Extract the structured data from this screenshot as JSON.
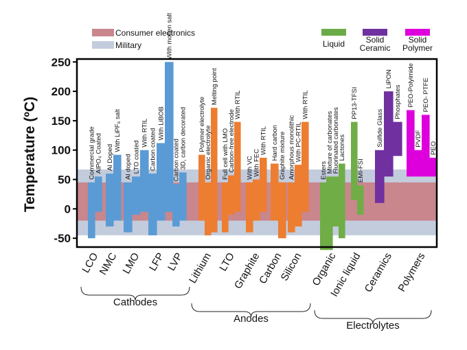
{
  "chart_data": {
    "type": "bar",
    "subtype": "floating-range",
    "ylabel": "Temperature (ºC)",
    "ylim": [
      -65,
      255
    ],
    "yticks": [
      -50,
      0,
      50,
      100,
      150,
      200,
      250
    ],
    "bands": [
      {
        "name": "Consumer electronics",
        "range": [
          -20,
          45
        ],
        "color": "#c9868d"
      },
      {
        "name": "Military",
        "range": [
          -45,
          67
        ],
        "color": "#c3ccdc"
      }
    ],
    "legend": {
      "band_entries": [
        "Consumer electronics",
        "Military"
      ],
      "color_entries": [
        {
          "label": "Liquid",
          "color": "#6bab47"
        },
        {
          "label": "Solid Ceramic",
          "color": "#7030a0"
        },
        {
          "label": "Solid Polymer",
          "color": "#dd00dd"
        }
      ]
    },
    "categories": [
      "LCO",
      "NMC",
      "LMO",
      "LFP",
      "LVP",
      "Lithium",
      "LTO",
      "Graphite",
      "Carbon",
      "Silicon",
      "Organic",
      "Ionic liquid",
      "Ceramics",
      "Polymers"
    ],
    "groups": [
      {
        "name": "Cathodes",
        "categories": [
          "LCO",
          "NMC",
          "LMO",
          "LFP",
          "LVP"
        ]
      },
      {
        "name": "Anodes",
        "categories": [
          "Lithium",
          "LTO",
          "Graphite",
          "Carbon",
          "Silicon"
        ]
      },
      {
        "name": "Electrolytes",
        "categories": [
          "Organic",
          "Ionic liquid",
          "Ceramics",
          "Polymers"
        ]
      }
    ],
    "series": [
      {
        "category": "LCO",
        "label": "Commercial grade",
        "low": -50,
        "high": 45,
        "color": "#5b9bd5"
      },
      {
        "category": "LCO",
        "label": "AlPO₄ Coated",
        "low": -5,
        "high": 55,
        "color": "#5b9bd5"
      },
      {
        "category": "NMC",
        "label": "Al Doped",
        "low": -30,
        "high": 60,
        "color": "#5b9bd5"
      },
      {
        "category": "NMC",
        "label": "With LiPF₆ salt",
        "low": -20,
        "high": 92,
        "color": "#5b9bd5"
      },
      {
        "category": "LMO",
        "label": "Al doped",
        "low": -40,
        "high": 45,
        "color": "#5b9bd5"
      },
      {
        "category": "LMO",
        "label": "LTO coated",
        "low": -10,
        "high": 55,
        "color": "#5b9bd5"
      },
      {
        "category": "LMO",
        "label": "With RTIL",
        "low": -5,
        "high": 100,
        "color": "#5b9bd5"
      },
      {
        "category": "LFP",
        "label": "Carbon coated",
        "low": -45,
        "high": 60,
        "color": "#5b9bd5"
      },
      {
        "category": "LFP",
        "label": "With LiBOB",
        "low": -20,
        "high": 112,
        "color": "#5b9bd5"
      },
      {
        "category": "LFP",
        "label": "With molten salt",
        "low": -5,
        "high": 250,
        "color": "#5b9bd5"
      },
      {
        "category": "LVP",
        "label": "Carbon coated",
        "low": -30,
        "high": 42,
        "color": "#5b9bd5"
      },
      {
        "category": "LVP",
        "label": "3D, carbon decorated",
        "low": -20,
        "high": 62,
        "color": "#5b9bd5"
      },
      {
        "category": "Lithium",
        "label": "Polymer electrolyte",
        "low": -20,
        "high": 92,
        "color": "#ed7d31"
      },
      {
        "category": "Lithium",
        "label": "Organic electrolyte",
        "low": -45,
        "high": 45,
        "color": "#ed7d31"
      },
      {
        "category": "Lithium",
        "label": "Melting point",
        "low": -40,
        "high": 172,
        "color": "#ed7d31"
      },
      {
        "category": "LTO",
        "label": "Full cell with LMO",
        "low": -40,
        "high": 45,
        "color": "#ed7d31"
      },
      {
        "category": "LTO",
        "label": "Carbon-free electrode",
        "low": -10,
        "high": 57,
        "color": "#ed7d31"
      },
      {
        "category": "LTO",
        "label": "With RTIL",
        "low": -5,
        "high": 148,
        "color": "#ed7d31"
      },
      {
        "category": "Graphite",
        "label": "With VC",
        "low": -40,
        "high": 45,
        "color": "#ed7d31"
      },
      {
        "category": "Graphite",
        "label": "With FEC",
        "low": -20,
        "high": 50,
        "color": "#ed7d31"
      },
      {
        "category": "Graphite",
        "label": "With RTIL",
        "low": -5,
        "high": 87,
        "color": "#ed7d31"
      },
      {
        "category": "Carbon",
        "label": "Hard carbon",
        "low": -20,
        "high": 77,
        "color": "#ed7d31"
      },
      {
        "category": "Carbon",
        "label": "Graphite mixture",
        "low": -50,
        "high": 45,
        "color": "#ed7d31"
      },
      {
        "category": "Silicon",
        "label": "Amorphous monolithic",
        "low": -40,
        "high": 45,
        "color": "#ed7d31"
      },
      {
        "category": "Silicon",
        "label": "With PC-RTIL",
        "low": -30,
        "high": 75,
        "color": "#ed7d31"
      },
      {
        "category": "Silicon",
        "label": "With RTIL",
        "low": -5,
        "high": 148,
        "color": "#ed7d31"
      },
      {
        "category": "Organic",
        "label": "Esters",
        "low": -70,
        "high": 45,
        "color": "#70ad47"
      },
      {
        "category": "Organic",
        "label": "Mixture of carbonates",
        "low": -70,
        "high": 55,
        "color": "#70ad47"
      },
      {
        "category": "Organic",
        "label": "Fluorinated carbonates",
        "low": -30,
        "high": 55,
        "color": "#70ad47"
      },
      {
        "category": "Organic",
        "label": "Lactones",
        "low": -50,
        "high": 77,
        "color": "#70ad47"
      },
      {
        "category": "Ionic liquid",
        "label": "PP13-TFSI",
        "low": 15,
        "high": 148,
        "color": "#70ad47"
      },
      {
        "category": "Ionic liquid",
        "label": "EMI-FSI",
        "low": -10,
        "high": 40,
        "color": "#70ad47"
      },
      {
        "category": "Ceramics",
        "label": "Sulfide Glass",
        "low": 10,
        "high": 100,
        "color": "#7030a0"
      },
      {
        "category": "Ceramics",
        "label": "LiPON",
        "low": 55,
        "high": 200,
        "color": "#7030a0"
      },
      {
        "category": "Ceramics",
        "label": "Phosphates",
        "low": 90,
        "high": 148,
        "color": "#7030a0"
      },
      {
        "category": "Polymers",
        "label": "PEO-Polyimide",
        "low": 55,
        "high": 168,
        "color": "#dd00dd"
      },
      {
        "category": "Polymers",
        "label": "PVDF",
        "low": 55,
        "high": 100,
        "color": "#dd00dd"
      },
      {
        "category": "Polymers",
        "label": "PEO- PTFE",
        "low": 55,
        "high": 160,
        "color": "#dd00dd"
      },
      {
        "category": "Polymers",
        "label": "PEO",
        "low": 55,
        "high": 87,
        "color": "#dd00dd"
      }
    ]
  }
}
